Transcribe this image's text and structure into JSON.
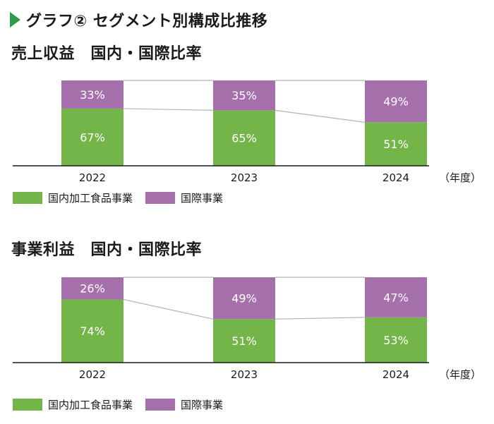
{
  "header": {
    "title": "グラフ② セグメント別構成比推移",
    "marker_color": "#2f9a48"
  },
  "colors": {
    "domestic": "#74b54a",
    "international": "#a670ad",
    "connector": "#b3b3b3",
    "axis": "#1a1a1a",
    "bar_label": "#ffffff"
  },
  "chart_data": [
    {
      "type": "bar",
      "stacked": true,
      "title": "売上収益　国内・国際比率",
      "categories": [
        "2022",
        "2023",
        "2024"
      ],
      "xlabel": "（年度）",
      "series": [
        {
          "name": "国内加工食品事業",
          "values": [
            67,
            65,
            51
          ],
          "labels": [
            "67%",
            "65%",
            "51%"
          ],
          "color": "#74b54a"
        },
        {
          "name": "国際事業",
          "values": [
            33,
            35,
            49
          ],
          "labels": [
            "33%",
            "35%",
            "49%"
          ],
          "color": "#a670ad"
        }
      ],
      "ylim": [
        0,
        100
      ]
    },
    {
      "type": "bar",
      "stacked": true,
      "title": "事業利益　国内・国際比率",
      "categories": [
        "2022",
        "2023",
        "2024"
      ],
      "xlabel": "（年度）",
      "series": [
        {
          "name": "国内加工食品事業",
          "values": [
            74,
            51,
            53
          ],
          "labels": [
            "74%",
            "51%",
            "53%"
          ],
          "color": "#74b54a"
        },
        {
          "name": "国際事業",
          "values": [
            26,
            49,
            47
          ],
          "labels": [
            "26%",
            "49%",
            "47%"
          ],
          "color": "#a670ad"
        }
      ],
      "ylim": [
        0,
        100
      ]
    }
  ]
}
